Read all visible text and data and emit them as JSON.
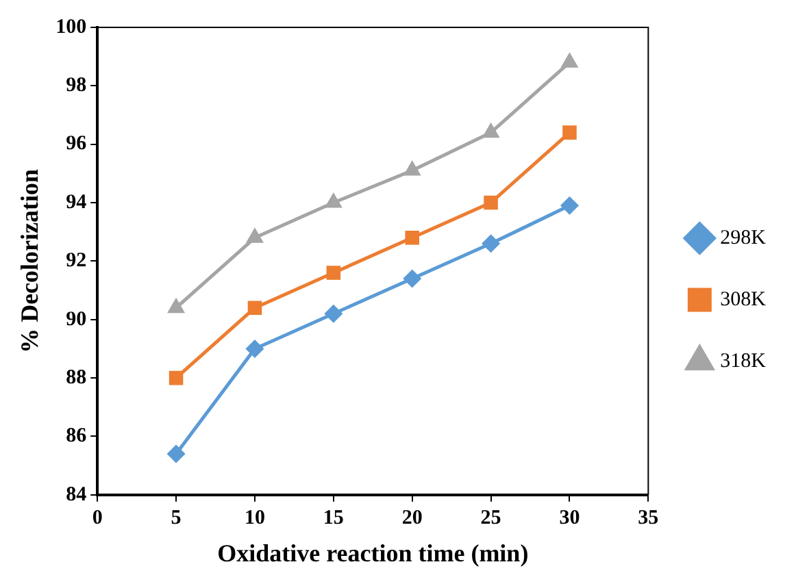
{
  "chart_data": {
    "type": "line",
    "xlabel": "Oxidative reaction time (min)",
    "ylabel": "% Decolorization",
    "x": [
      5,
      10,
      15,
      20,
      25,
      30
    ],
    "series": [
      {
        "name": "298K",
        "color": "#5b9bd5",
        "marker": "diamond",
        "values": [
          85.4,
          89.0,
          90.2,
          91.4,
          92.6,
          93.9
        ]
      },
      {
        "name": "308K",
        "color": "#ed7d31",
        "marker": "square",
        "values": [
          88.0,
          90.4,
          91.6,
          92.8,
          94.0,
          96.4
        ]
      },
      {
        "name": "318K",
        "color": "#a5a5a5",
        "marker": "triangle",
        "values": [
          90.4,
          92.8,
          94.0,
          95.1,
          96.4,
          98.8
        ]
      }
    ],
    "xlim": [
      0,
      35
    ],
    "xticks": [
      0,
      5,
      10,
      15,
      20,
      25,
      30,
      35
    ],
    "ylim": [
      84,
      100
    ],
    "yticks": [
      84,
      86,
      88,
      90,
      92,
      94,
      96,
      98,
      100
    ],
    "grid": false,
    "legend": "right"
  }
}
